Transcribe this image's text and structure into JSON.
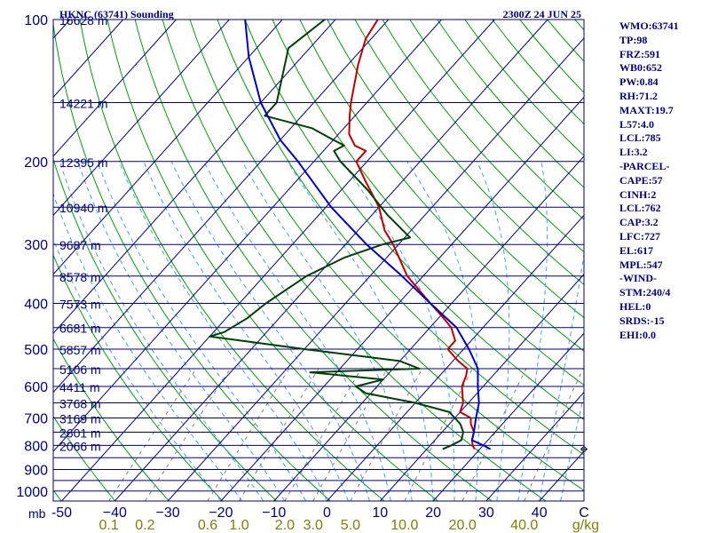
{
  "header": {
    "station": "HKNC (63741) Sounding",
    "time": "2300Z 24 JUN 25"
  },
  "side_panel": [
    "WMO:63741",
    "TP:98",
    "FRZ:591",
    "WB0:652",
    "PW:0.84",
    "RH:71.2",
    "MAXT:19.7",
    "L57:4.0",
    "LCL:785",
    "LI:3.2",
    "-PARCEL-",
    "CAPE:57",
    "CINH:2",
    "LCL:762",
    "CAP:3.2",
    "LFC:727",
    "EL:617",
    "MPL:547",
    "-WIND-",
    "STM:240/4",
    "HEL:0",
    "SRDS:-15",
    "EHI:0.0"
  ],
  "colors": {
    "frame": "#000080",
    "isobar": "#000080",
    "isotherm": "#000080",
    "dry_adiabat": "#00a000",
    "moist_adiabat": "#40a0ff",
    "mixing_ratio": "#808080",
    "temperature": "#c00000",
    "dewpoint": "#004000",
    "parcel": "#0000c0",
    "text": "#000080",
    "mixing_ratio_labels": "#808000"
  },
  "chart_data": {
    "type": "skew-t",
    "pressure_unit_label": "mb",
    "pressure_levels": [
      100,
      150,
      200,
      250,
      300,
      350,
      400,
      450,
      500,
      550,
      600,
      650,
      700,
      750,
      800,
      850,
      900,
      950,
      1000
    ],
    "pressure_tick_labels": [
      {
        "p": 100,
        "label": "100"
      },
      {
        "p": 200,
        "label": "200"
      },
      {
        "p": 300,
        "label": "300"
      },
      {
        "p": 400,
        "label": "400"
      },
      {
        "p": 500,
        "label": "500"
      },
      {
        "p": 600,
        "label": "600"
      },
      {
        "p": 700,
        "label": "700"
      },
      {
        "p": 800,
        "label": "800"
      },
      {
        "p": 900,
        "label": "900"
      },
      {
        "p": 1000,
        "label": "1000"
      }
    ],
    "height_labels": [
      {
        "p": 100,
        "label": "16628 m"
      },
      {
        "p": 150,
        "label": "14221 m"
      },
      {
        "p": 200,
        "label": "12395 m"
      },
      {
        "p": 250,
        "label": "10940 m"
      },
      {
        "p": 300,
        "label": "9687 m"
      },
      {
        "p": 350,
        "label": "8578 m"
      },
      {
        "p": 400,
        "label": "7573 m"
      },
      {
        "p": 450,
        "label": "6681 m"
      },
      {
        "p": 500,
        "label": "5857 m"
      },
      {
        "p": 550,
        "label": "5106 m"
      },
      {
        "p": 600,
        "label": "4411 m"
      },
      {
        "p": 650,
        "label": "3768 m"
      },
      {
        "p": 700,
        "label": "3169 m"
      },
      {
        "p": 750,
        "label": "2601 m"
      },
      {
        "p": 800,
        "label": "2066 m"
      }
    ],
    "temperature_axis": {
      "range": [
        -50,
        50
      ],
      "unit": "C",
      "ticks": [
        -50,
        -40,
        -30,
        -20,
        -10,
        0,
        10,
        20,
        30,
        40
      ],
      "tick_labels": [
        "-50",
        "−40",
        "−30",
        "−20",
        "−10",
        "0",
        "10",
        "20",
        "30",
        "40"
      ]
    },
    "mixing_ratio_axis": {
      "unit": "g/kg",
      "values": [
        0.1,
        0.2,
        0.6,
        1.0,
        2.0,
        3.0,
        5.0,
        10.0,
        20.0,
        40.0
      ],
      "labels": [
        "0.1",
        "0.2",
        "0.6",
        "1.0",
        "2.0",
        "3.0",
        "5.0",
        "10.0",
        "20.0",
        "40.0"
      ]
    },
    "series": [
      {
        "kind": "temperature",
        "points": [
          {
            "p": 100,
            "t": -72
          },
          {
            "p": 110,
            "t": -71
          },
          {
            "p": 125,
            "t": -68
          },
          {
            "p": 150,
            "t": -63
          },
          {
            "p": 160,
            "t": -61
          },
          {
            "p": 175,
            "t": -58
          },
          {
            "p": 185,
            "t": -55
          },
          {
            "p": 190,
            "t": -52
          },
          {
            "p": 200,
            "t": -52
          },
          {
            "p": 220,
            "t": -47
          },
          {
            "p": 250,
            "t": -40
          },
          {
            "p": 280,
            "t": -35
          },
          {
            "p": 300,
            "t": -31
          },
          {
            "p": 350,
            "t": -23
          },
          {
            "p": 400,
            "t": -14
          },
          {
            "p": 430,
            "t": -9
          },
          {
            "p": 450,
            "t": -6
          },
          {
            "p": 480,
            "t": -3
          },
          {
            "p": 500,
            "t": -3
          },
          {
            "p": 530,
            "t": 1
          },
          {
            "p": 550,
            "t": 4
          },
          {
            "p": 570,
            "t": 5
          },
          {
            "p": 600,
            "t": 6
          },
          {
            "p": 650,
            "t": 9
          },
          {
            "p": 680,
            "t": 10
          },
          {
            "p": 700,
            "t": 13
          },
          {
            "p": 720,
            "t": 14
          },
          {
            "p": 750,
            "t": 16
          },
          {
            "p": 780,
            "t": 17
          },
          {
            "p": 800,
            "t": 18
          },
          {
            "p": 815,
            "t": 19
          }
        ]
      },
      {
        "kind": "dewpoint",
        "points": [
          {
            "p": 100,
            "t": -82
          },
          {
            "p": 115,
            "t": -84
          },
          {
            "p": 150,
            "t": -77
          },
          {
            "p": 160,
            "t": -77
          },
          {
            "p": 170,
            "t": -66
          },
          {
            "p": 180,
            "t": -60
          },
          {
            "p": 185,
            "t": -57
          },
          {
            "p": 190,
            "t": -58
          },
          {
            "p": 200,
            "t": -55
          },
          {
            "p": 230,
            "t": -45
          },
          {
            "p": 260,
            "t": -37
          },
          {
            "p": 290,
            "t": -29
          },
          {
            "p": 300,
            "t": -33
          },
          {
            "p": 320,
            "t": -38
          },
          {
            "p": 350,
            "t": -42
          },
          {
            "p": 400,
            "t": -45
          },
          {
            "p": 430,
            "t": -46
          },
          {
            "p": 460,
            "t": -48
          },
          {
            "p": 470,
            "t": -50
          },
          {
            "p": 500,
            "t": -30
          },
          {
            "p": 530,
            "t": -10
          },
          {
            "p": 550,
            "t": -5
          },
          {
            "p": 560,
            "t": -25
          },
          {
            "p": 580,
            "t": -10
          },
          {
            "p": 600,
            "t": -14
          },
          {
            "p": 620,
            "t": -11
          },
          {
            "p": 650,
            "t": 0
          },
          {
            "p": 680,
            "t": 8
          },
          {
            "p": 700,
            "t": 10
          },
          {
            "p": 720,
            "t": 12
          },
          {
            "p": 750,
            "t": 14
          },
          {
            "p": 780,
            "t": 15
          },
          {
            "p": 800,
            "t": 14
          },
          {
            "p": 815,
            "t": 13
          }
        ]
      },
      {
        "kind": "parcel",
        "points": [
          {
            "p": 100,
            "t": -97
          },
          {
            "p": 120,
            "t": -90
          },
          {
            "p": 150,
            "t": -80
          },
          {
            "p": 180,
            "t": -70
          },
          {
            "p": 200,
            "t": -63
          },
          {
            "p": 250,
            "t": -49
          },
          {
            "p": 300,
            "t": -36
          },
          {
            "p": 350,
            "t": -24
          },
          {
            "p": 400,
            "t": -14
          },
          {
            "p": 450,
            "t": -5
          },
          {
            "p": 500,
            "t": 1
          },
          {
            "p": 550,
            "t": 6
          },
          {
            "p": 600,
            "t": 9
          },
          {
            "p": 650,
            "t": 12
          },
          {
            "p": 700,
            "t": 14
          },
          {
            "p": 750,
            "t": 16
          },
          {
            "p": 780,
            "t": 17
          },
          {
            "p": 800,
            "t": 20
          },
          {
            "p": 815,
            "t": 22
          }
        ]
      }
    ],
    "wind_marker": {
      "p": 815,
      "label": ""
    }
  }
}
